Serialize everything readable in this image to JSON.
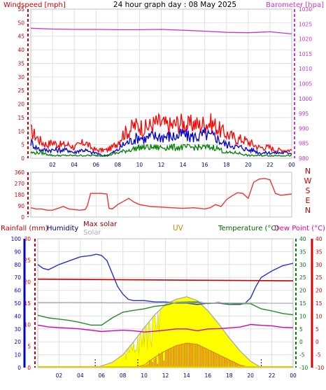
{
  "header": {
    "title": "24 hour graph day : 08 May 2025"
  },
  "colors": {
    "windspeed": "#cc0000",
    "barometer": "#cc33cc",
    "gust": "#ff0000",
    "avg_wind": "#0000cc",
    "wind_low": "#008000",
    "direction": "#ee3333",
    "rain": "#cc0000",
    "humidity": "#2233cc",
    "maxsolar": "#aaaaaa",
    "solar": "#ffff00",
    "uv": "#cc8800",
    "temperature": "#228b22",
    "dewpoint": "#dd00aa",
    "grid": "#e0e0e0",
    "axis_rain": "#cc0000",
    "axis_humidity": "#0000cc",
    "axis_temp": "#008000",
    "axis_dew": "#dd0000"
  },
  "time_labels": [
    "02",
    "04",
    "06",
    "08",
    "10",
    "12",
    "14",
    "16",
    "18",
    "20",
    "22",
    "00"
  ],
  "chart_data": [
    {
      "id": "wind",
      "type": "line",
      "labels": {
        "left": "Windspeed [mph]",
        "right": "Barometer [hpa]"
      },
      "left_axis": {
        "min": 0,
        "max": 55,
        "step": 5,
        "ticks": [
          "0",
          "5",
          "10",
          "15",
          "20",
          "25",
          "30",
          "35",
          "40",
          "45",
          "50",
          "55"
        ]
      },
      "right_axis": {
        "min": 980,
        "max": 1030,
        "step": 5,
        "ticks": [
          "980",
          "985",
          "990",
          "995",
          "1000",
          "1005",
          "1010",
          "1015",
          "1020",
          "1025",
          "1030"
        ]
      },
      "x_hours": [
        0,
        24
      ],
      "series": [
        {
          "key": "gust",
          "axis": "left",
          "color": "#ff0000",
          "x": [
            0,
            0.5,
            1,
            1.5,
            2,
            2.5,
            3,
            3.5,
            4,
            4.5,
            5,
            5.5,
            6,
            6.5,
            7,
            7.5,
            8,
            8.5,
            9,
            9.5,
            10,
            10.5,
            11,
            11.5,
            12,
            12.5,
            13,
            13.5,
            14,
            14.5,
            15,
            15.5,
            16,
            16.5,
            17,
            17.5,
            18,
            18.5,
            19,
            19.5,
            20,
            20.5,
            21,
            21.5,
            22,
            22.5,
            23,
            23.5,
            24
          ],
          "y": [
            10,
            8,
            6,
            5,
            6,
            5,
            5,
            5,
            4,
            5,
            6,
            4,
            3,
            3,
            3,
            4,
            6,
            9,
            10,
            12,
            12,
            11,
            12,
            13,
            13,
            12,
            12,
            13,
            13,
            12,
            13,
            12,
            13,
            13,
            12,
            10,
            9,
            8,
            7,
            7,
            6,
            5,
            4,
            4,
            4,
            3,
            3,
            3,
            3
          ]
        },
        {
          "key": "avg",
          "axis": "left",
          "color": "#0000cc",
          "x": [
            0,
            0.5,
            1,
            1.5,
            2,
            2.5,
            3,
            3.5,
            4,
            4.5,
            5,
            5.5,
            6,
            6.5,
            7,
            7.5,
            8,
            8.5,
            9,
            9.5,
            10,
            10.5,
            11,
            11.5,
            12,
            12.5,
            13,
            13.5,
            14,
            14.5,
            15,
            15.5,
            16,
            16.5,
            17,
            17.5,
            18,
            18.5,
            19,
            19.5,
            20,
            20.5,
            21,
            21.5,
            22,
            22.5,
            23,
            23.5,
            24
          ],
          "y": [
            6,
            4,
            3,
            3,
            3,
            3,
            3,
            3,
            2,
            3,
            3,
            2,
            2,
            1,
            1,
            2,
            3,
            5,
            6,
            7,
            8,
            7,
            8,
            8,
            8,
            8,
            8,
            8,
            9,
            8,
            8,
            8,
            9,
            8,
            8,
            6,
            5,
            5,
            4,
            4,
            3,
            3,
            2,
            2,
            2,
            2,
            2,
            2,
            2
          ]
        },
        {
          "key": "low",
          "axis": "left",
          "color": "#008000",
          "x": [
            0,
            1,
            2,
            3,
            4,
            5,
            6,
            7,
            8,
            9,
            10,
            11,
            12,
            13,
            14,
            15,
            16,
            17,
            18,
            19,
            20,
            21,
            22,
            23,
            24
          ],
          "y": [
            2,
            2,
            1,
            1,
            1,
            1,
            1,
            1,
            2,
            3,
            4,
            4,
            4,
            4,
            4,
            4,
            4,
            4,
            2,
            2,
            1,
            1,
            1,
            1,
            1
          ]
        },
        {
          "key": "barometer",
          "axis": "right",
          "color": "#cc33cc",
          "x": [
            0,
            2,
            4,
            6,
            8,
            10,
            12,
            14,
            16,
            18,
            20,
            22,
            24
          ],
          "y": [
            1023.6,
            1023.3,
            1023.2,
            1023.2,
            1023.1,
            1023.1,
            1023.2,
            1022.9,
            1022.6,
            1022.2,
            1022.1,
            1022.4,
            1021.7
          ]
        }
      ]
    },
    {
      "id": "direction",
      "type": "line",
      "left_axis": {
        "min": 0,
        "max": 360,
        "ticks": [
          "0",
          "90",
          "180",
          "270",
          "360"
        ],
        "values": [
          0,
          90,
          180,
          270,
          360
        ]
      },
      "right_labels": [
        "N",
        "W",
        "S",
        "E",
        "N"
      ],
      "series": [
        {
          "key": "direction",
          "color": "#ee3333",
          "x": [
            0,
            0.5,
            1,
            1.5,
            2,
            2.5,
            3,
            3.5,
            4,
            4.5,
            5,
            5.2,
            5.5,
            6,
            6.5,
            7,
            7.2,
            7.5,
            8,
            8.5,
            9,
            9.5,
            10,
            11,
            12,
            13,
            14,
            15,
            16,
            16.5,
            17,
            17.5,
            18,
            18.5,
            19,
            19.5,
            20,
            20.5,
            21,
            21.5,
            22,
            22.5,
            23,
            23.5,
            24
          ],
          "y": [
            75,
            65,
            65,
            55,
            55,
            70,
            85,
            65,
            60,
            55,
            60,
            90,
            190,
            190,
            190,
            185,
            70,
            65,
            100,
            125,
            150,
            120,
            100,
            85,
            80,
            75,
            70,
            75,
            65,
            75,
            100,
            85,
            140,
            170,
            195,
            190,
            150,
            280,
            305,
            310,
            300,
            190,
            175,
            180,
            185
          ]
        }
      ]
    },
    {
      "id": "bottom",
      "type": "line",
      "labels": {
        "rain": "Rainfall (mm)",
        "humidity": "Humidity",
        "maxsolar": "Max solar",
        "solar": "Solar",
        "uv": "UV",
        "temperature": "Temperature (°C)",
        "dewpoint": "Dew Point (°C)"
      },
      "rain_axis": {
        "min": 0,
        "max": 30,
        "ticks": [
          "0",
          "5",
          "10",
          "15",
          "20",
          "25",
          "30"
        ]
      },
      "humidity_axis": {
        "min": 0,
        "max": 100,
        "ticks": [
          "0",
          "10",
          "20",
          "30",
          "40",
          "50",
          "60",
          "70",
          "80",
          "90",
          "100"
        ]
      },
      "temp_axis": {
        "min": -10,
        "max": 40,
        "ticks": [
          "-10",
          "-5",
          "0",
          "5",
          "10",
          "15",
          "20",
          "25",
          "30",
          "35",
          "40"
        ]
      },
      "dew_axis": {
        "min": -10,
        "max": 40,
        "ticks": [
          "-10",
          "-5",
          "0",
          "5",
          "10",
          "15",
          "20",
          "25",
          "30",
          "35",
          "40"
        ]
      },
      "series": [
        {
          "key": "humidity",
          "axis": "humidity",
          "color": "#2233cc",
          "x": [
            0,
            0.5,
            1,
            1.5,
            2,
            3,
            4,
            5,
            5.5,
            6,
            6.5,
            7,
            7.5,
            8,
            8.5,
            9,
            10,
            11,
            12,
            13,
            14,
            15,
            16,
            17,
            18,
            19,
            19.5,
            20,
            20.5,
            21,
            22,
            23,
            24
          ],
          "y": [
            80,
            77,
            76,
            78,
            80,
            83,
            86,
            87,
            88,
            87,
            83,
            73,
            63,
            57,
            53,
            52,
            52,
            51,
            51,
            50,
            50,
            49,
            50,
            50,
            49,
            49,
            50,
            54,
            63,
            70,
            75,
            79,
            81
          ]
        },
        {
          "key": "temperature",
          "axis": "temp",
          "color": "#228b22",
          "x": [
            0,
            1,
            2,
            3,
            4,
            5,
            6,
            7,
            8,
            9,
            10,
            11,
            12,
            13,
            14,
            15,
            16,
            17,
            18,
            19,
            20,
            21,
            22,
            23,
            24
          ],
          "y": [
            10.3,
            9.3,
            8.8,
            8.3,
            7.5,
            6.5,
            6.5,
            9.3,
            11.5,
            12.2,
            12.8,
            13.8,
            14.2,
            15.3,
            15.4,
            15.5,
            14.8,
            15.3,
            14.6,
            14.8,
            14.8,
            12.8,
            12,
            11,
            10.5
          ]
        },
        {
          "key": "dewpoint",
          "axis": "temp",
          "color": "#dd00aa",
          "x": [
            0,
            1,
            2,
            3,
            4,
            5,
            6,
            7,
            8,
            9,
            10,
            11,
            12,
            13,
            14,
            15,
            16,
            17,
            18,
            19,
            20,
            21,
            22,
            23,
            24
          ],
          "y": [
            6.5,
            5.8,
            5.5,
            5.3,
            5,
            4.5,
            4,
            4.3,
            4.5,
            4.3,
            3.8,
            4.1,
            4.5,
            5,
            5,
            4.3,
            5,
            5.1,
            5.4,
            5.7,
            6.7,
            6.4,
            6.2,
            5.6,
            5.5
          ]
        },
        {
          "key": "rain",
          "axis": "rain",
          "color": "#cc0000",
          "x": [
            0,
            24
          ],
          "y": [
            20.6,
            20.2
          ]
        },
        {
          "key": "maxsolar",
          "axis": "humidity",
          "color": "#aaaaaa",
          "x": [
            0,
            24
          ],
          "y": [
            50.5,
            50
          ]
        },
        {
          "key": "solar_envelope",
          "axis": "humidity",
          "color": "#aaaaaa",
          "x": [
            5.5,
            7,
            8,
            9,
            10,
            11,
            12,
            13,
            14,
            15,
            16,
            17,
            18,
            19,
            20,
            21
          ],
          "y": [
            0,
            4,
            10,
            20,
            31,
            41,
            49,
            53,
            55,
            52,
            44,
            34,
            23,
            13,
            5,
            0
          ]
        },
        {
          "key": "uv",
          "axis": "humidity",
          "color": "#dd7700",
          "x": [
            9,
            10,
            11,
            12,
            13,
            14,
            15,
            16,
            17,
            18,
            19,
            20
          ],
          "y": [
            0,
            2,
            8,
            13,
            17,
            19,
            18,
            14,
            10,
            6,
            2,
            0
          ]
        }
      ]
    }
  ]
}
